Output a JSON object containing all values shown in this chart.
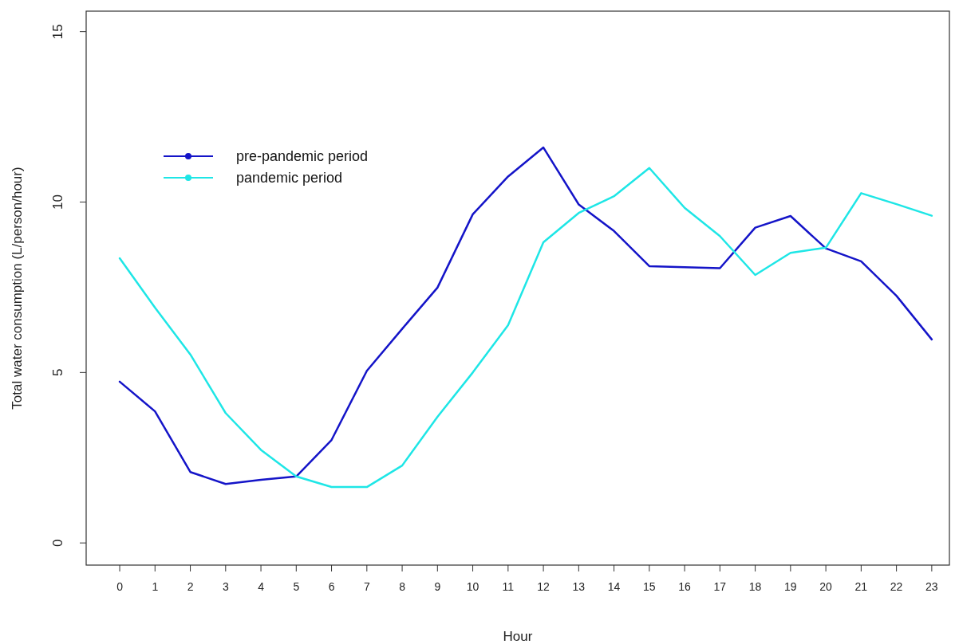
{
  "chart_data": {
    "type": "line",
    "xlabel": "Hour",
    "ylabel": "Total water consumption (L/person/hour)",
    "x": [
      0,
      1,
      2,
      3,
      4,
      5,
      6,
      7,
      8,
      9,
      10,
      11,
      12,
      13,
      14,
      15,
      16,
      17,
      18,
      19,
      20,
      21,
      22,
      23
    ],
    "xlim": [
      -0.95,
      23.5
    ],
    "xticks": [
      0,
      1,
      2,
      3,
      4,
      5,
      6,
      7,
      8,
      9,
      10,
      11,
      12,
      13,
      14,
      15,
      16,
      17,
      18,
      19,
      20,
      21,
      22,
      23
    ],
    "ylim": [
      -0.65,
      15.6
    ],
    "yticks": [
      0,
      5,
      10,
      15
    ],
    "series": [
      {
        "name": "pre-pandemic period",
        "color": "#1414c8",
        "values": [
          4.73,
          3.86,
          2.08,
          1.73,
          1.85,
          1.95,
          3.02,
          5.05,
          6.28,
          7.49,
          9.64,
          10.75,
          11.6,
          9.93,
          9.15,
          8.12,
          8.09,
          8.06,
          9.25,
          9.59,
          8.64,
          8.26,
          7.25,
          5.97
        ]
      },
      {
        "name": "pandemic period",
        "color": "#1ee6e6",
        "values": [
          8.35,
          6.9,
          5.53,
          3.81,
          2.73,
          1.95,
          1.64,
          1.64,
          2.27,
          3.7,
          5.0,
          6.39,
          8.82,
          9.68,
          10.17,
          11.0,
          9.83,
          9.0,
          7.86,
          8.51,
          8.66,
          10.26,
          9.94,
          9.6
        ]
      }
    ],
    "legend": "top left",
    "grid": false,
    "line_style": "solid"
  }
}
